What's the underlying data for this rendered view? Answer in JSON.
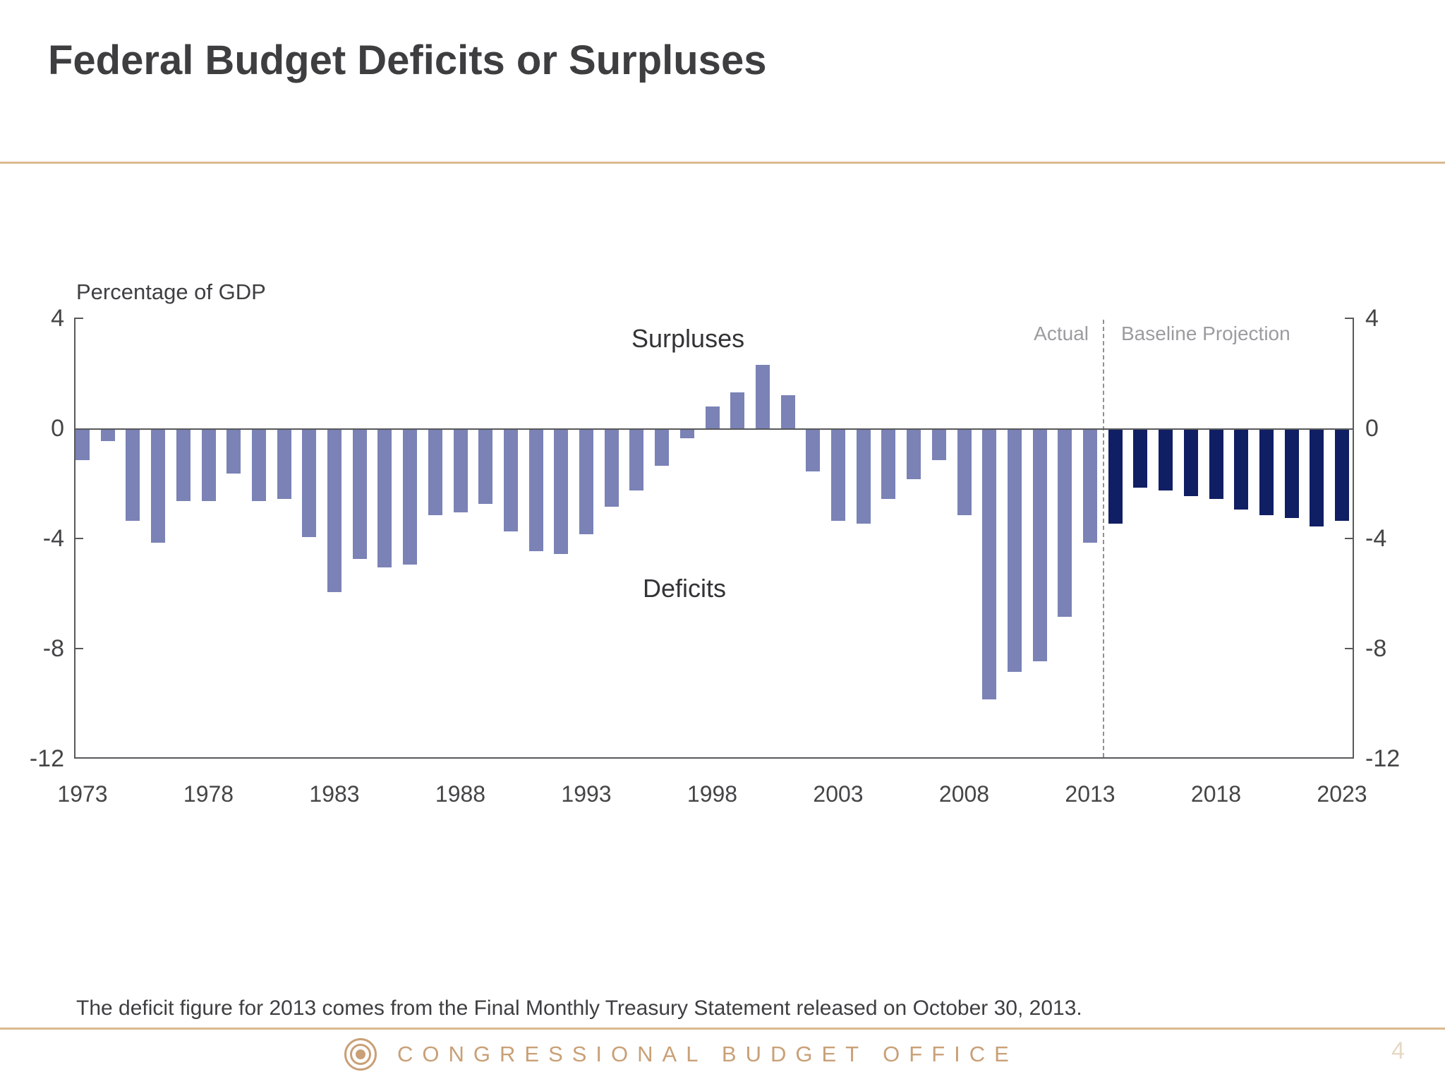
{
  "page": {
    "title": "Federal Budget Deficits or Surpluses",
    "footnote": "The deficit figure for 2013 comes from the Final Monthly Treasury Statement released on October 30, 2013.",
    "footer_text": "CONGRESSIONAL BUDGET OFFICE",
    "page_number": "4",
    "colors": {
      "accent_tan": "#c9a077",
      "separator_tan": "#d9ba90",
      "bar_actual": "#7a82b6",
      "bar_projection": "#101f64",
      "axis_gray": "#58595b",
      "muted_gray": "#9b9c9f",
      "text_dark": "#3e3e40",
      "page_number_tan": "#e6d9c4"
    }
  },
  "chart_data": {
    "type": "bar",
    "axis_title": "Percentage of GDP",
    "ylabel": "Percentage of GDP",
    "xlabel": "",
    "ylim": [
      -12,
      4
    ],
    "yticks": [
      4,
      0,
      -4,
      -8,
      -12
    ],
    "xticks": [
      1973,
      1978,
      1983,
      1988,
      1993,
      1998,
      2003,
      2008,
      2013,
      2018,
      2023
    ],
    "grid": false,
    "legend_position": "none",
    "divider_between": [
      2013,
      2014
    ],
    "annotations": {
      "surpluses": "Surpluses",
      "deficits": "Deficits",
      "actual": "Actual",
      "baseline": "Baseline Projection"
    },
    "series": [
      {
        "name": "Actual",
        "role": "actual",
        "years": [
          1973,
          1974,
          1975,
          1976,
          1977,
          1978,
          1979,
          1980,
          1981,
          1982,
          1983,
          1984,
          1985,
          1986,
          1987,
          1988,
          1989,
          1990,
          1991,
          1992,
          1993,
          1994,
          1995,
          1996,
          1997,
          1998,
          1999,
          2000,
          2001,
          2002,
          2003,
          2004,
          2005,
          2006,
          2007,
          2008,
          2009,
          2010,
          2011,
          2012,
          2013
        ],
        "values": [
          -1.1,
          -0.4,
          -3.3,
          -4.1,
          -2.6,
          -2.6,
          -1.6,
          -2.6,
          -2.5,
          -3.9,
          -5.9,
          -4.7,
          -5.0,
          -4.9,
          -3.1,
          -3.0,
          -2.7,
          -3.7,
          -4.4,
          -4.5,
          -3.8,
          -2.8,
          -2.2,
          -1.3,
          -0.3,
          0.8,
          1.3,
          2.3,
          1.2,
          -1.5,
          -3.3,
          -3.4,
          -2.5,
          -1.8,
          -1.1,
          -3.1,
          -9.8,
          -8.8,
          -8.4,
          -6.8,
          -4.1
        ]
      },
      {
        "name": "Baseline Projection",
        "role": "projection",
        "years": [
          2014,
          2015,
          2016,
          2017,
          2018,
          2019,
          2020,
          2021,
          2022,
          2023
        ],
        "values": [
          -3.4,
          -2.1,
          -2.2,
          -2.4,
          -2.5,
          -2.9,
          -3.1,
          -3.2,
          -3.5,
          -3.3
        ]
      }
    ]
  }
}
